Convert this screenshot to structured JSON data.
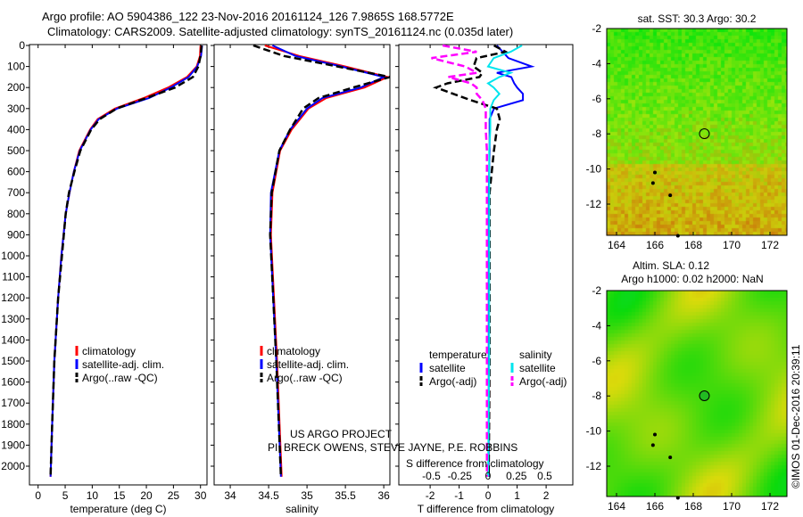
{
  "title": {
    "line1": "Argo profile: AO 5904386_122 23-Nov-2016 20161124_126 7.9865S 168.5772E",
    "line2": "Climatology: CARS2009. Satellite-adjusted climatology: synTS_20161124.nc (0.035d later)"
  },
  "colors": {
    "climatology": "#ff0000",
    "satellite": "#0000ff",
    "argo": "#000000",
    "sal_sat": "#00e5ee",
    "sal_argo": "#ff00ff"
  },
  "chart_data": [
    {
      "type": "line",
      "xlabel": "temperature (deg C)",
      "xlim": [
        -1.6,
        31.2
      ],
      "xticks": [
        0,
        5,
        10,
        15,
        20,
        25,
        30
      ],
      "ylim": [
        2090,
        -5
      ],
      "yticks": [
        0,
        100,
        200,
        300,
        400,
        500,
        600,
        700,
        800,
        900,
        1000,
        1100,
        1200,
        1300,
        1400,
        1500,
        1600,
        1700,
        1800,
        1900,
        2000
      ],
      "legend": [
        "climatology",
        "satellite-adj. clim.",
        "Argo(..raw -QC)"
      ],
      "depth": [
        0,
        50,
        100,
        150,
        200,
        250,
        300,
        350,
        400,
        500,
        600,
        700,
        800,
        1000,
        1200,
        1500,
        1800,
        2050
      ],
      "series": [
        {
          "name": "climatology",
          "values": [
            30,
            29.9,
            29.3,
            27.5,
            24,
            19.5,
            14.2,
            11,
            9.6,
            7.6,
            6.6,
            5.8,
            5.1,
            4.3,
            3.7,
            3,
            2.6,
            2.3
          ]
        },
        {
          "name": "satellite-adj. clim.",
          "values": [
            30.3,
            30.1,
            29.4,
            27.8,
            24.5,
            20.5,
            14.6,
            11.2,
            9.7,
            7.7,
            6.6,
            5.8,
            5.1,
            4.3,
            3.7,
            3,
            2.6,
            2.3
          ]
        },
        {
          "name": "Argo(..raw -QC)",
          "values": [
            30.2,
            30,
            29.6,
            28.6,
            25.3,
            20,
            14.5,
            11.4,
            9.8,
            7.8,
            6.7,
            5.7,
            5.1,
            4.4,
            3.7,
            3,
            2.6,
            2.3
          ]
        }
      ]
    },
    {
      "type": "line",
      "xlabel": "salinity",
      "xlim": [
        33.79,
        36.08
      ],
      "xticks": [
        34,
        34.5,
        35,
        35.5,
        36
      ],
      "legend": [
        "climatology",
        "satellite-adj. clim.",
        "Argo(..raw -QC)"
      ],
      "depth": [
        0,
        50,
        100,
        150,
        200,
        250,
        300,
        400,
        500,
        700,
        900,
        1200,
        1500,
        2050
      ],
      "series": [
        {
          "name": "climatology",
          "values": [
            34.45,
            34.9,
            35.5,
            36.05,
            35.75,
            35.25,
            35.02,
            34.8,
            34.65,
            34.55,
            34.53,
            34.57,
            34.61,
            34.67
          ]
        },
        {
          "name": "satellite-adj. clim.",
          "values": [
            34.55,
            34.85,
            35.45,
            36.0,
            35.7,
            35.2,
            35.0,
            34.78,
            34.64,
            34.53,
            34.52,
            34.56,
            34.6,
            34.66
          ]
        },
        {
          "name": "Argo(..raw -QC)",
          "values": [
            34.3,
            34.7,
            35.4,
            36.08,
            35.6,
            35.15,
            34.95,
            34.78,
            34.64,
            34.54,
            34.52,
            34.56,
            34.6,
            34.66
          ]
        }
      ]
    },
    {
      "type": "line",
      "xlabel": "T difference from climatology",
      "xlabel2": "S difference from climatology",
      "xlim": [
        -3.08,
        2.92
      ],
      "xticks": [
        -2,
        -1,
        0,
        1,
        2
      ],
      "sticks": [
        "-0.5",
        "-0.25",
        "0",
        "0.25",
        "0.5"
      ],
      "legend_t": {
        "title": "temperature",
        "items": [
          "satellite",
          "Argo(-adj)"
        ]
      },
      "legend_s": {
        "title": "salinity",
        "items": [
          "satellite",
          "Argo(-adj)"
        ]
      },
      "depth": [
        0,
        30,
        60,
        100,
        130,
        150,
        180,
        200,
        230,
        260,
        300,
        350,
        400,
        500,
        700,
        1000,
        1500,
        2050
      ],
      "series": [
        {
          "name": "T satellite",
          "values": [
            0.3,
            0.5,
            0.7,
            1.5,
            0.3,
            0.8,
            0.9,
            1.0,
            1.2,
            1.2,
            0.2,
            0.05,
            0.05,
            0.05,
            0.02,
            0.02,
            0.02,
            0.02
          ]
        },
        {
          "name": "T Argo(-adj)",
          "values": [
            0.2,
            0.6,
            -0.4,
            -0.5,
            -0.2,
            -0.3,
            -1.4,
            -1.8,
            -1.2,
            -0.6,
            0.3,
            0.4,
            0.3,
            0.2,
            0.05,
            0.05,
            0.05,
            0.02
          ]
        },
        {
          "name": "S satellite",
          "values": [
            0.3,
            0.2,
            0.05,
            0.0,
            0.2,
            0.1,
            0.0,
            0.05,
            0.1,
            0.05,
            0.02,
            0.02,
            0.02,
            0.01,
            0.01,
            0.01,
            0.01,
            0.0
          ]
        },
        {
          "name": "S Argo(-adj)",
          "values": [
            -0.4,
            -0.1,
            -0.5,
            -0.2,
            -0.1,
            -0.35,
            -0.15,
            -0.1,
            -0.1,
            -0.05,
            -0.02,
            -0.02,
            -0.02,
            -0.01,
            -0.01,
            -0.01,
            -0.01,
            -0.01
          ]
        }
      ]
    }
  ],
  "maps": [
    {
      "title": "sat. SST: 30.3  Argo: 30.2",
      "xticks": [
        164,
        166,
        168,
        170,
        172
      ],
      "yticks": [
        -2,
        -4,
        -6,
        -8,
        -10,
        -12
      ],
      "lon": 168.58,
      "lat": -7.99
    },
    {
      "title": "Altim. SLA: 0.12",
      "title2": "Argo h1000: 0.02 h2000: NaN",
      "xticks": [
        164,
        166,
        168,
        170,
        172
      ],
      "yticks": [
        -2,
        -4,
        -6,
        -8,
        -10,
        -12
      ],
      "lon": 168.58,
      "lat": -7.99
    }
  ],
  "credit": "US ARGO PROJECT",
  "pi": "PI: BRECK OWENS, STEVE JAYNE, P.E. ROBBINS",
  "stamp": "©IMOS 01-Dec-2016 20:39:11"
}
